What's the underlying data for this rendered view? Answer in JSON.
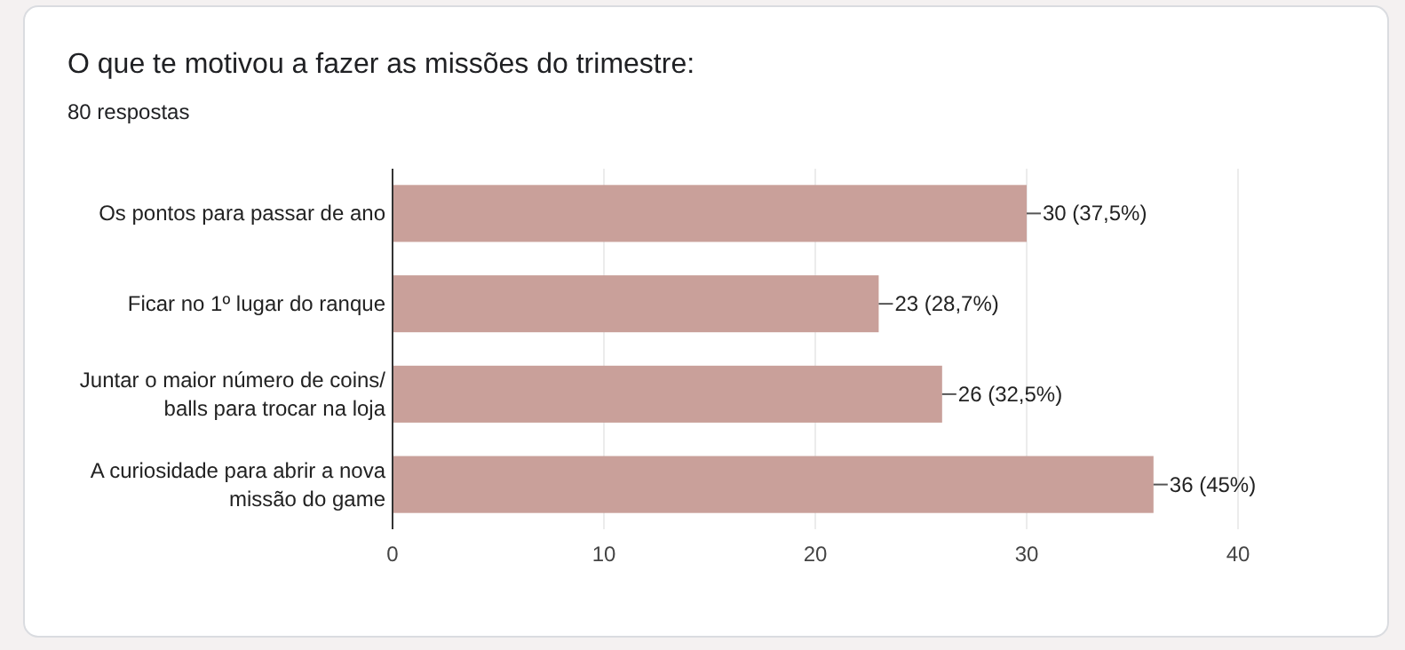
{
  "chart_data": {
    "type": "bar",
    "orientation": "horizontal",
    "title": "O que te motivou a fazer as missões do trimestre:",
    "subtitle": "80 respostas",
    "categories": [
      "Os pontos para passar de ano",
      "Ficar no 1º lugar do ranque",
      "Juntar o maior número de coins/ balls para trocar na loja",
      "A curiosidade para abrir a nova missão do game"
    ],
    "values": [
      30,
      23,
      26,
      36
    ],
    "color": "#c9a09a",
    "value_labels": [
      "30 (37,5%)",
      "23 (28,7%)",
      "26 (32,5%)",
      "36 (45%)"
    ],
    "xlim": [
      0,
      40
    ],
    "xticks": [
      0,
      10,
      20,
      30,
      40
    ],
    "grid": "x"
  }
}
